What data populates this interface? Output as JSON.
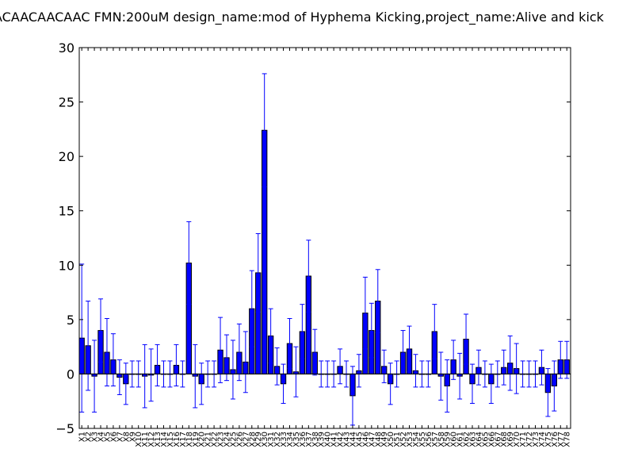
{
  "chart_data": {
    "type": "bar",
    "title": "ACAACAACAAC  FMN:200uM  design_name:mod of Hyphema Kicking,project_name:Alive and kick",
    "xlabel": "",
    "ylabel": "",
    "ylim": [
      -5,
      30
    ],
    "yticks": [
      -5,
      0,
      5,
      10,
      15,
      20,
      25,
      30
    ],
    "grid": false,
    "bar_color": "#0000ff",
    "error_color": "#0000ff",
    "categories": [
      "X1",
      "X2",
      "X3",
      "X4",
      "X5",
      "X6",
      "X7",
      "X8",
      "X9",
      "X10",
      "X11",
      "X12",
      "X13",
      "X14",
      "X15",
      "X16",
      "X17",
      "X18",
      "X19",
      "X20",
      "X21",
      "X22",
      "X23",
      "X24",
      "X25",
      "X26",
      "X27",
      "X28",
      "X29",
      "X30",
      "X31",
      "X32",
      "X33",
      "X34",
      "X35",
      "X36",
      "X37",
      "X38",
      "X39",
      "X40",
      "X41",
      "X42",
      "X43",
      "X44",
      "X45",
      "X46",
      "X47",
      "X48",
      "X49",
      "X50",
      "X51",
      "X52",
      "X53",
      "X54",
      "X55",
      "X56",
      "X57",
      "X58",
      "X59",
      "X60",
      "X61",
      "X62",
      "X63",
      "X64",
      "X65",
      "X66",
      "X67",
      "X68",
      "X69",
      "X70",
      "X71",
      "X72",
      "X73",
      "X74",
      "X75",
      "X76",
      "X77",
      "X78"
    ],
    "values": [
      3.3,
      2.6,
      -0.2,
      4.0,
      2.0,
      1.3,
      -0.3,
      -0.9,
      0.0,
      0.0,
      -0.2,
      -0.1,
      0.8,
      0.0,
      0.0,
      0.8,
      0.0,
      10.2,
      -0.2,
      -0.9,
      0.0,
      0.0,
      2.2,
      1.5,
      0.4,
      2.0,
      1.1,
      6.0,
      9.3,
      22.4,
      3.5,
      0.7,
      -0.9,
      2.8,
      0.2,
      3.9,
      9.0,
      2.0,
      0.0,
      0.0,
      0.0,
      0.7,
      0.0,
      -2.0,
      0.3,
      5.6,
      4.0,
      6.7,
      0.7,
      -0.9,
      0.0,
      2.0,
      2.3,
      0.3,
      0.0,
      0.0,
      3.9,
      -0.2,
      -1.1,
      1.3,
      -0.2,
      3.2,
      -0.9,
      0.6,
      0.0,
      -0.9,
      0.0,
      0.6,
      1.0,
      0.5,
      0.0,
      0.0,
      0.0,
      0.6,
      -1.7,
      -1.1,
      1.3,
      1.3
    ],
    "errors": [
      6.8,
      4.1,
      3.3,
      2.9,
      3.1,
      2.4,
      1.6,
      1.9,
      1.2,
      1.2,
      2.9,
      2.4,
      1.9,
      1.2,
      1.2,
      1.9,
      1.2,
      3.8,
      2.9,
      1.9,
      1.2,
      1.2,
      3.0,
      2.1,
      2.7,
      2.6,
      2.8,
      3.5,
      3.6,
      5.2,
      2.5,
      1.7,
      1.8,
      2.3,
      2.3,
      2.5,
      3.3,
      2.1,
      1.2,
      1.2,
      1.2,
      1.6,
      1.2,
      2.7,
      1.5,
      3.3,
      2.5,
      2.9,
      1.5,
      1.9,
      1.2,
      2.0,
      2.1,
      1.5,
      1.2,
      1.2,
      2.5,
      2.2,
      2.4,
      1.8,
      2.1,
      2.3,
      1.8,
      1.6,
      1.2,
      1.8,
      1.2,
      1.6,
      2.5,
      2.3,
      1.2,
      1.2,
      1.2,
      1.6,
      2.2,
      2.3,
      1.7,
      1.7
    ]
  }
}
